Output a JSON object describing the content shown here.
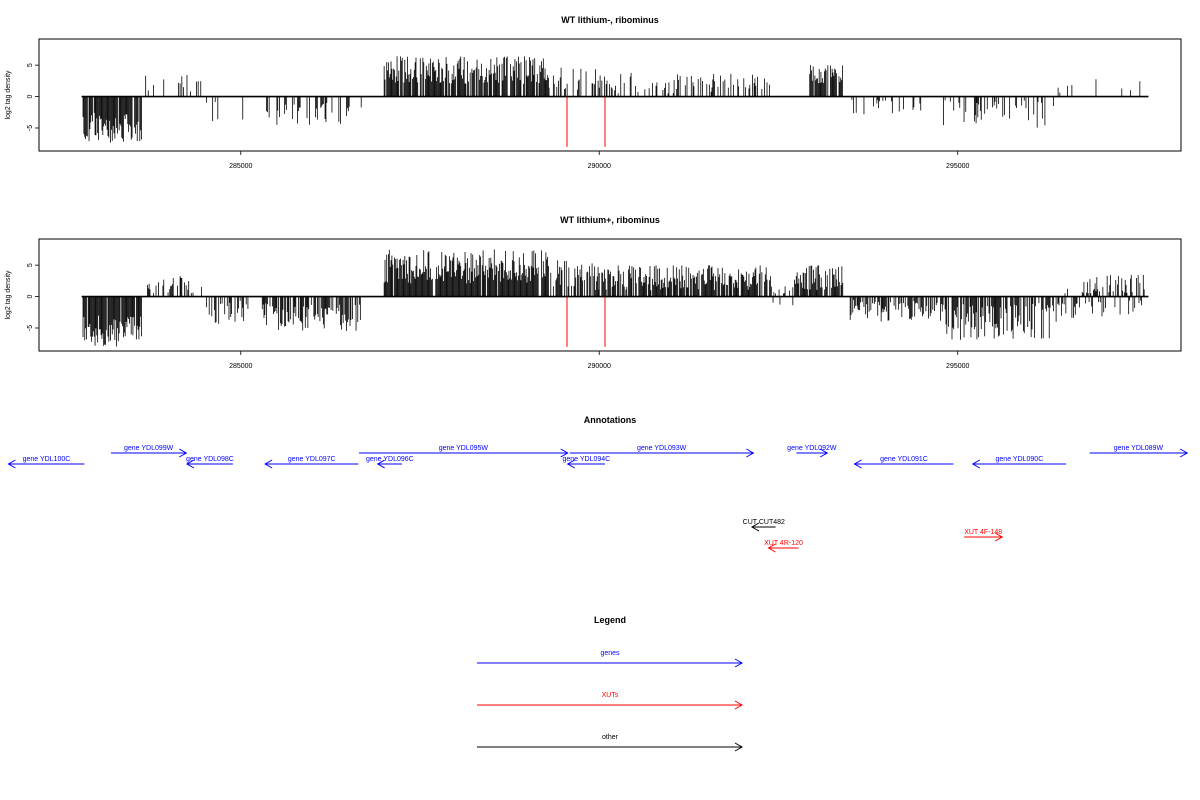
{
  "chart_data": [
    {
      "type": "bar",
      "title": "WT lithium-, ribominus",
      "ylabel": "log2 tag density",
      "xlabel": "",
      "xlim": [
        282200,
        298100
      ],
      "ylim": [
        -8.5,
        9
      ],
      "x_ticks": [
        285000,
        290000,
        295000
      ],
      "x_tick_labels": [
        "285000",
        "290000",
        "295000"
      ],
      "y_ticks": [
        -5,
        0,
        5
      ],
      "y_tick_labels": [
        "-5",
        "0",
        "5"
      ],
      "grid": false,
      "baseline_range": [
        282780,
        297660
      ],
      "segments": [
        {
          "x0": 282800,
          "x1": 283620,
          "mode": "neg",
          "min": 2.5,
          "max": 7.5,
          "density": 0.85
        },
        {
          "x0": 283650,
          "x1": 284500,
          "mode": "pos",
          "min": 0.5,
          "max": 3.5,
          "density": 0.15
        },
        {
          "x0": 284500,
          "x1": 285200,
          "mode": "neg",
          "min": 0.5,
          "max": 4,
          "density": 0.12
        },
        {
          "x0": 285300,
          "x1": 286700,
          "mode": "neg",
          "min": 1,
          "max": 4.5,
          "density": 0.25
        },
        {
          "x0": 287000,
          "x1": 289300,
          "mode": "pos",
          "min": 2,
          "max": 6.5,
          "density": 0.85
        },
        {
          "x0": 289300,
          "x1": 290000,
          "mode": "pos",
          "min": 1,
          "max": 5,
          "density": 0.4
        },
        {
          "x0": 290000,
          "x1": 292400,
          "mode": "pos",
          "min": 0.5,
          "max": 3.8,
          "density": 0.35
        },
        {
          "x0": 292900,
          "x1": 293400,
          "mode": "pos",
          "min": 2,
          "max": 5,
          "density": 0.7
        },
        {
          "x0": 293500,
          "x1": 294500,
          "mode": "neg",
          "min": 0.5,
          "max": 3,
          "density": 0.2
        },
        {
          "x0": 294800,
          "x1": 296400,
          "mode": "neg",
          "min": 0.5,
          "max": 5,
          "density": 0.25
        },
        {
          "x0": 296400,
          "x1": 297600,
          "mode": "pos",
          "min": 0.5,
          "max": 3,
          "density": 0.05
        }
      ],
      "highlights": [
        {
          "x": 289550,
          "value": -8
        },
        {
          "x": 290080,
          "value": -8
        }
      ]
    },
    {
      "type": "bar",
      "title": "WT lithium+, ribominus",
      "ylabel": "log2 tag density",
      "xlabel": "",
      "xlim": [
        282200,
        298100
      ],
      "ylim": [
        -8.5,
        9
      ],
      "x_ticks": [
        285000,
        290000,
        295000
      ],
      "x_tick_labels": [
        "285000",
        "290000",
        "295000"
      ],
      "y_ticks": [
        -5,
        0,
        5
      ],
      "y_tick_labels": [
        "-5",
        "0",
        "5"
      ],
      "grid": false,
      "baseline_range": [
        282780,
        297660
      ],
      "segments": [
        {
          "x0": 282800,
          "x1": 283620,
          "mode": "neg",
          "min": 3,
          "max": 8,
          "density": 0.9
        },
        {
          "x0": 283650,
          "x1": 284500,
          "mode": "pos",
          "min": 0.5,
          "max": 3.5,
          "density": 0.45
        },
        {
          "x0": 284500,
          "x1": 285200,
          "mode": "neg",
          "min": 0.5,
          "max": 4.5,
          "density": 0.4
        },
        {
          "x0": 285300,
          "x1": 286700,
          "mode": "neg",
          "min": 1,
          "max": 5.5,
          "density": 0.7
        },
        {
          "x0": 287000,
          "x1": 289300,
          "mode": "pos",
          "min": 2,
          "max": 7.5,
          "density": 0.95
        },
        {
          "x0": 289300,
          "x1": 290000,
          "mode": "pos",
          "min": 1,
          "max": 6,
          "density": 0.7
        },
        {
          "x0": 290000,
          "x1": 292400,
          "mode": "pos",
          "min": 1,
          "max": 5,
          "density": 0.8
        },
        {
          "x0": 292400,
          "x1": 292700,
          "mode": "mixed",
          "min": 0.3,
          "max": 2,
          "density": 0.3
        },
        {
          "x0": 292700,
          "x1": 293400,
          "mode": "pos",
          "min": 1,
          "max": 5,
          "density": 0.8
        },
        {
          "x0": 293500,
          "x1": 294800,
          "mode": "neg",
          "min": 0.5,
          "max": 4,
          "density": 0.6
        },
        {
          "x0": 294800,
          "x1": 296400,
          "mode": "neg",
          "min": 1,
          "max": 7,
          "density": 0.7
        },
        {
          "x0": 296400,
          "x1": 297600,
          "mode": "mixed",
          "min": 0.5,
          "max": 3.5,
          "density": 0.7
        }
      ],
      "highlights": [
        {
          "x": 289550,
          "value": -8
        },
        {
          "x": 290080,
          "value": -8
        }
      ]
    }
  ],
  "annotations": {
    "title": "Annotations",
    "xlim": [
      282200,
      298100
    ],
    "features": [
      {
        "label": "gene YDL100C",
        "type": "gene",
        "start": 281760,
        "end": 282820,
        "strand": "-",
        "row": 1
      },
      {
        "label": "gene YDL099W",
        "type": "gene",
        "start": 283190,
        "end": 284240,
        "strand": "+",
        "row": 0
      },
      {
        "label": "gene YDL098C",
        "type": "gene",
        "start": 284250,
        "end": 284890,
        "strand": "-",
        "row": 1
      },
      {
        "label": "gene YDL097C",
        "type": "gene",
        "start": 285340,
        "end": 286640,
        "strand": "-",
        "row": 1
      },
      {
        "label": "gene YDL096C",
        "type": "gene",
        "start": 286910,
        "end": 287250,
        "strand": "-",
        "row": 1
      },
      {
        "label": "gene YDL095W",
        "type": "gene",
        "start": 286650,
        "end": 289560,
        "strand": "+",
        "row": 0
      },
      {
        "label": "gene YDL094C",
        "type": "gene",
        "start": 289560,
        "end": 290080,
        "strand": "-",
        "row": 1
      },
      {
        "label": "gene YDL093W",
        "type": "gene",
        "start": 289590,
        "end": 292150,
        "strand": "+",
        "row": 0
      },
      {
        "label": "gene YDL092W",
        "type": "gene",
        "start": 292750,
        "end": 293180,
        "strand": "+",
        "row": 0
      },
      {
        "label": "gene YDL091C",
        "type": "gene",
        "start": 293560,
        "end": 294940,
        "strand": "-",
        "row": 1
      },
      {
        "label": "gene YDL090C",
        "type": "gene",
        "start": 295210,
        "end": 296510,
        "strand": "-",
        "row": 1
      },
      {
        "label": "gene YDL089W",
        "type": "gene",
        "start": 296840,
        "end": 298200,
        "strand": "+",
        "row": 0
      },
      {
        "label": "CUT CUT482",
        "type": "other",
        "start": 292130,
        "end": 292460,
        "strand": "-",
        "row": 2
      },
      {
        "label": "XUT 4R-120",
        "type": "XUT",
        "start": 292360,
        "end": 292780,
        "strand": "-",
        "row": 3
      },
      {
        "label": "XUT 4F-148",
        "type": "XUT",
        "start": 295090,
        "end": 295620,
        "strand": "+",
        "row": 4
      }
    ]
  },
  "legend": {
    "title": "Legend",
    "items": [
      {
        "label": "genes",
        "color": "#0000ff"
      },
      {
        "label": "XUTs",
        "color": "#ff0000"
      },
      {
        "label": "other",
        "color": "#000000"
      }
    ]
  },
  "colors": {
    "gene": "#0000ff",
    "XUT": "#ff0000",
    "other": "#000000",
    "axis": "#000000"
  }
}
